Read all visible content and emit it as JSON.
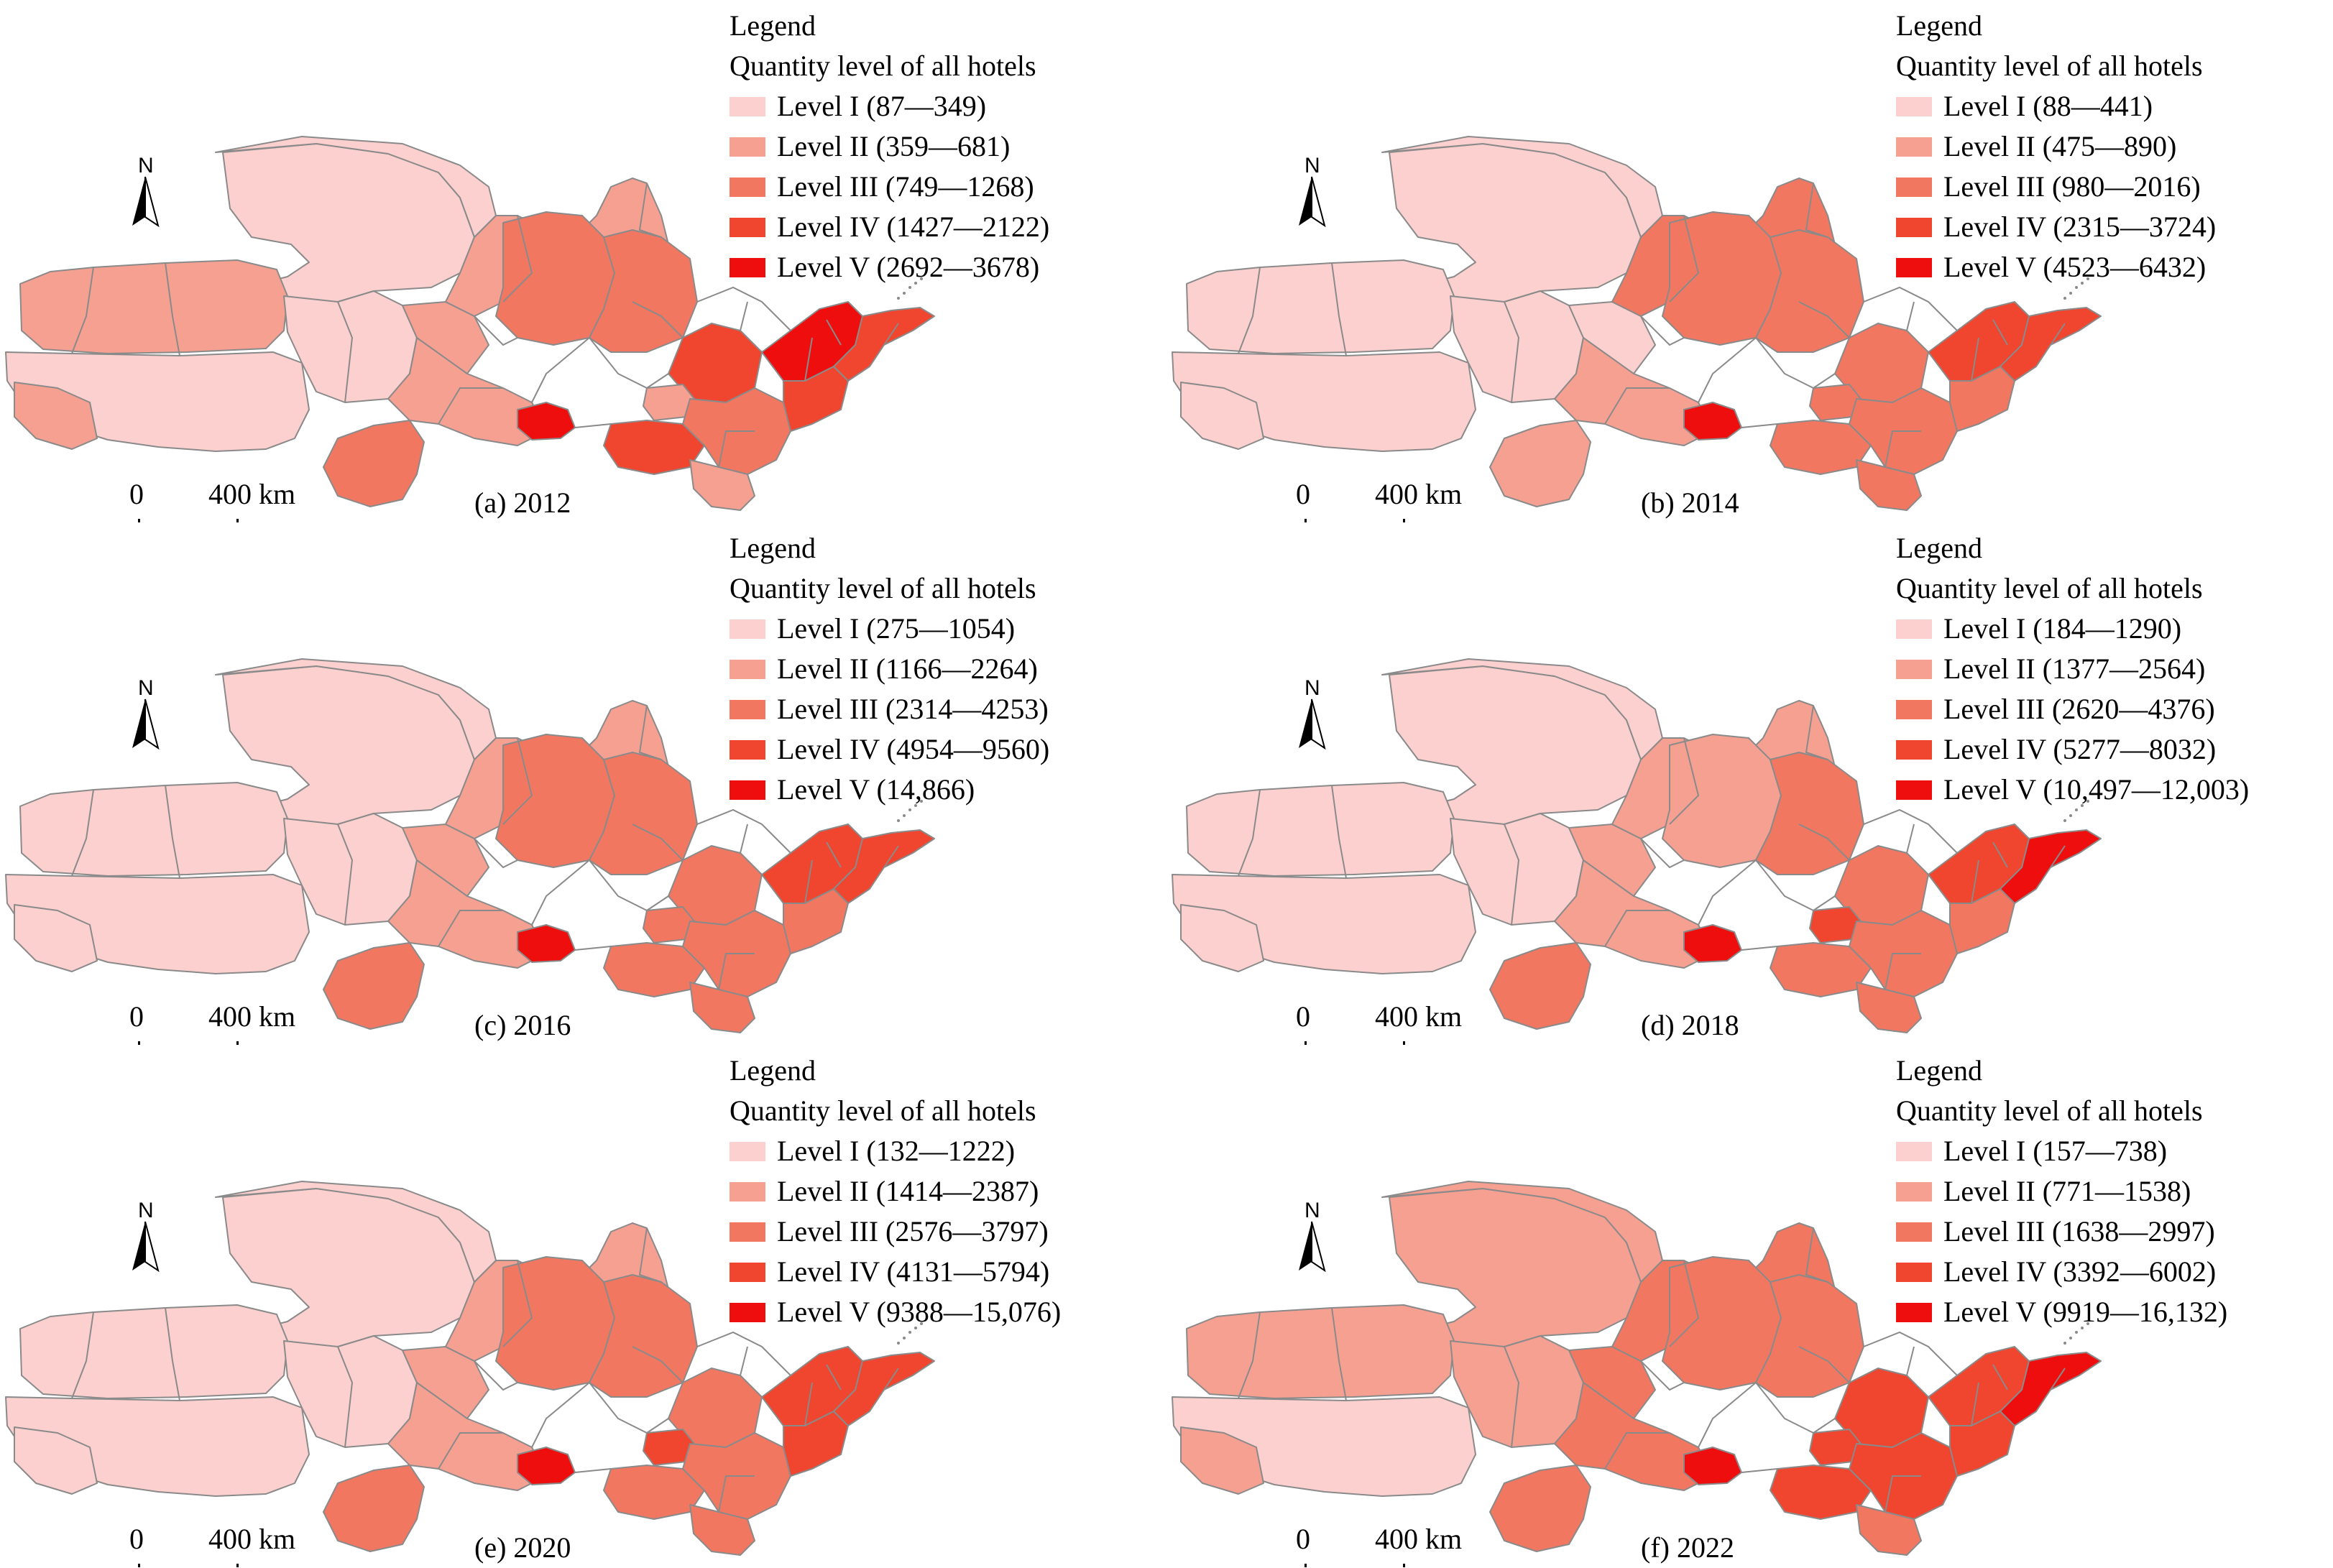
{
  "colors": {
    "level1": "#fcd0cf",
    "level2": "#f6a092",
    "level3": "#f27761",
    "level4": "#f0452e",
    "level5": "#ee0e0e",
    "outline": "#8a8a8a"
  },
  "panels": [
    {
      "caption": "(a) 2012",
      "legend_title": "Legend",
      "legend_subtitle": "Quantity level of all hotels",
      "levels": [
        {
          "label": "Level I (87—349)",
          "color": "#fcd0cf"
        },
        {
          "label": "Level II (359—681)",
          "color": "#f6a092"
        },
        {
          "label": "Level III (749—1268)",
          "color": "#f27761"
        },
        {
          "label": "Level IV (1427—2122)",
          "color": "#f0452e"
        },
        {
          "label": "Level V (2692—3678)",
          "color": "#ee0e0e"
        }
      ],
      "north": "N",
      "scale_zero": "0",
      "scale_distance": "400 km",
      "region_levels": [
        1,
        2,
        1,
        2,
        1,
        3,
        2,
        2,
        3,
        1,
        2,
        3,
        4,
        5,
        2,
        4,
        3,
        2,
        5,
        4,
        4
      ]
    },
    {
      "caption": "(b) 2014",
      "legend_title": "Legend",
      "legend_subtitle": "Quantity level of all hotels",
      "levels": [
        {
          "label": "Level I (88—441)",
          "color": "#fcd0cf"
        },
        {
          "label": "Level II (475—890)",
          "color": "#f6a092"
        },
        {
          "label": "Level III (980—2016)",
          "color": "#f27761"
        },
        {
          "label": "Level IV (2315—3724)",
          "color": "#f0452e"
        },
        {
          "label": "Level V (4523—6432)",
          "color": "#ee0e0e"
        }
      ],
      "north": "N",
      "scale_zero": "0",
      "scale_distance": "400 km",
      "region_levels": [
        1,
        1,
        1,
        1,
        1,
        2,
        1,
        3,
        3,
        1,
        2,
        3,
        3,
        5,
        3,
        3,
        3,
        3,
        4,
        3,
        4
      ]
    },
    {
      "caption": "(c) 2016",
      "legend_title": "Legend",
      "legend_subtitle": "Quantity level of all hotels",
      "levels": [
        {
          "label": "Level I (275—1054)",
          "color": "#fcd0cf"
        },
        {
          "label": "Level II (1166—2264)",
          "color": "#f6a092"
        },
        {
          "label": "Level III (2314—4253)",
          "color": "#f27761"
        },
        {
          "label": "Level IV (4954—9560)",
          "color": "#f0452e"
        },
        {
          "label": "Level V (14,866)",
          "color": "#ee0e0e"
        }
      ],
      "north": "N",
      "scale_zero": "0",
      "scale_distance": "400 km",
      "region_levels": [
        1,
        1,
        1,
        1,
        1,
        3,
        2,
        2,
        3,
        1,
        2,
        3,
        3,
        5,
        3,
        3,
        3,
        3,
        4,
        3,
        4
      ]
    },
    {
      "caption": "(d) 2018",
      "legend_title": "Legend",
      "legend_subtitle": "Quantity level of all hotels",
      "levels": [
        {
          "label": "Level I (184—1290)",
          "color": "#fcd0cf"
        },
        {
          "label": "Level II (1377—2564)",
          "color": "#f6a092"
        },
        {
          "label": "Level III (2620—4376)",
          "color": "#f27761"
        },
        {
          "label": "Level IV (5277—8032)",
          "color": "#f0452e"
        },
        {
          "label": "Level V (10,497—12,003)",
          "color": "#ee0e0e"
        }
      ],
      "north": "N",
      "scale_zero": "0",
      "scale_distance": "400 km",
      "region_levels": [
        1,
        1,
        1,
        1,
        1,
        3,
        2,
        2,
        2,
        1,
        2,
        3,
        3,
        5,
        4,
        3,
        3,
        3,
        4,
        3,
        5
      ]
    },
    {
      "caption": "(e) 2020",
      "legend_title": "Legend",
      "legend_subtitle": "Quantity level of all hotels",
      "levels": [
        {
          "label": "Level I (132—1222)",
          "color": "#fcd0cf"
        },
        {
          "label": "Level II (1414—2387)",
          "color": "#f6a092"
        },
        {
          "label": "Level III (2576—3797)",
          "color": "#f27761"
        },
        {
          "label": "Level IV (4131—5794)",
          "color": "#f0452e"
        },
        {
          "label": "Level V (9388—15,076)",
          "color": "#ee0e0e"
        }
      ],
      "north": "N",
      "scale_zero": "0",
      "scale_distance": "400 km",
      "region_levels": [
        1,
        1,
        1,
        1,
        1,
        3,
        2,
        2,
        3,
        1,
        2,
        3,
        3,
        5,
        4,
        3,
        3,
        3,
        4,
        4,
        4
      ]
    },
    {
      "caption": "(f) 2022",
      "legend_title": "Legend",
      "legend_subtitle": "Quantity level of all hotels",
      "levels": [
        {
          "label": "Level I (157—738)",
          "color": "#fcd0cf"
        },
        {
          "label": "Level II (771—1538)",
          "color": "#f6a092"
        },
        {
          "label": "Level III (1638—2997)",
          "color": "#f27761"
        },
        {
          "label": "Level IV (3392—6002)",
          "color": "#f0452e"
        },
        {
          "label": "Level V (9919—16,132)",
          "color": "#ee0e0e"
        }
      ],
      "north": "N",
      "scale_zero": "0",
      "scale_distance": "400 km",
      "region_levels": [
        2,
        2,
        1,
        2,
        2,
        3,
        3,
        3,
        3,
        2,
        3,
        3,
        4,
        5,
        4,
        4,
        4,
        3,
        4,
        4,
        5
      ]
    }
  ]
}
